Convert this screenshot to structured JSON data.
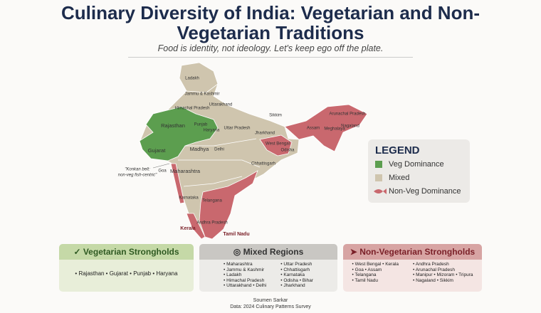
{
  "header": {
    "title": "Culinary Diversity of India: Vegetarian and Non-Vegetarian Traditions",
    "subtitle": "Food is identity, not ideology. Let's keep ego off the plate."
  },
  "map": {
    "labels": [
      "Ladakh",
      "Jammu & Kashmir",
      "Himachal Pradesh",
      "Uttarakhand",
      "Rajasthan",
      "Punjab",
      "Haryana",
      "Uttar Pradesh",
      "Gujarat",
      "Madhya",
      "Delhi",
      "Jharkhand",
      "Sikkim",
      "Arunachal Pradesh",
      "Assam",
      "Meghalaya",
      "Nagaland",
      "West Bengal",
      "Odisha",
      "Chhattisgarh",
      "Maharashtra",
      "Goa",
      "Karnataka",
      "Telangana",
      "Andhra Pradesh",
      "Kerala",
      "Tamil Nadu"
    ],
    "annotation": [
      "\"Konkan belt:",
      "non-veg fish-centric\""
    ]
  },
  "legend": {
    "title": "LEGEND",
    "items": [
      "Veg Dominance",
      "Mixed",
      "Non-Veg Dominance"
    ]
  },
  "panels": [
    {
      "title": "Vegetarian Strongholds",
      "columns": [
        [
          "Rajasthan • Gujarat • Punjab • Haryana"
        ]
      ]
    },
    {
      "title": "Mixed Regions",
      "columns": [
        [
          "Maharashtra",
          "Jammu & Kashmir",
          "Ladakh",
          "Himachal Pradesh",
          "Uttarakhand • Delhi"
        ],
        [
          "Uttar Pradesh",
          "Chhattisgarh",
          "Karnataka",
          "Odisha • Bihar",
          "Jharkhand"
        ]
      ]
    },
    {
      "title": "Non-Vegetarian Strongholds",
      "columns": [
        [
          "West Bengal • Kerala",
          "Goa • Assam",
          "Telangana",
          "Tamil Nadu"
        ],
        [
          "Andhra Pradesh",
          "Arunachal Pradesh",
          "Manipur • Mizoram • Tripura",
          "Nagaland • Sikkim"
        ]
      ]
    }
  ],
  "footer": {
    "author": "Soumen Sarkar",
    "source": "Data: 2024 Culinary Patterns Survey"
  }
}
